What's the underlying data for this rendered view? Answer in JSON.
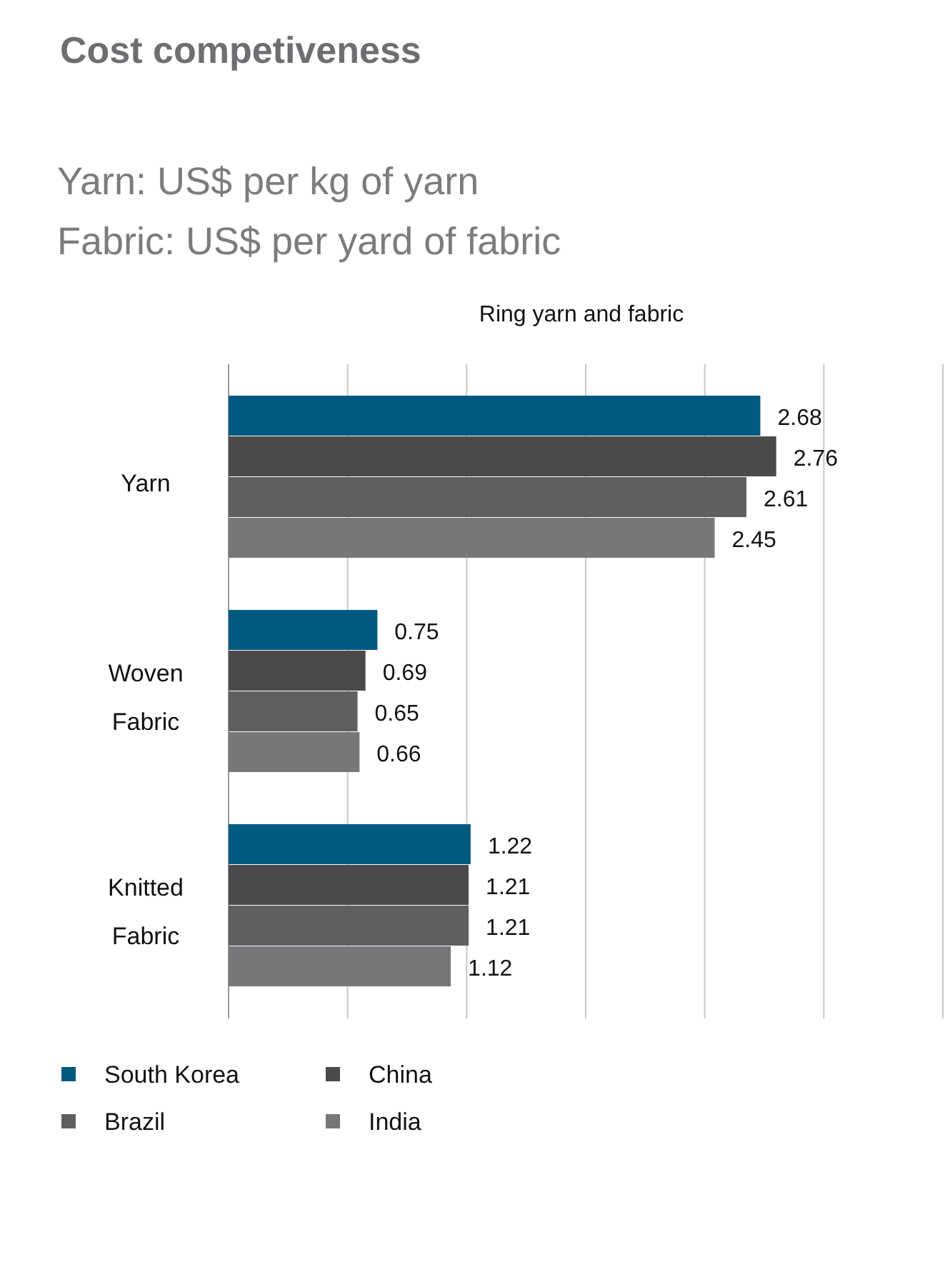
{
  "chart_data": {
    "type": "bar",
    "orientation": "horizontal",
    "title": "Cost competiveness",
    "subtitle": "Yarn: US$ per kg of yarn\nFabric: US$ per yard of fabric",
    "annotations": [
      "Ring yarn and fabric"
    ],
    "categories": [
      "Yarn",
      "Woven Fabric",
      "Knitted Fabric"
    ],
    "series": [
      {
        "name": "South Korea",
        "color": "#005a80",
        "values": [
          2.68,
          0.75,
          1.22
        ]
      },
      {
        "name": "China",
        "color": "#4a4a4d",
        "values": [
          2.76,
          0.69,
          1.21
        ]
      },
      {
        "name": "Brazil",
        "color": "#5f5f62",
        "values": [
          2.61,
          0.65,
          1.21
        ]
      },
      {
        "name": "India",
        "color": "#77777a",
        "values": [
          2.45,
          0.66,
          1.12
        ]
      }
    ],
    "xlim": [
      0,
      3.6
    ],
    "xticks": [
      {
        "value": 0,
        "label": null
      },
      {
        "value": 0.6,
        "label": null
      },
      {
        "value": 1.2,
        "label": null
      },
      {
        "value": 1.8,
        "label": null
      },
      {
        "value": 2.4,
        "label": null
      },
      {
        "value": 3,
        "label": null
      },
      {
        "value": 3.6,
        "label": null
      }
    ],
    "tick_labels": "y",
    "grid": "x",
    "data_labels": true,
    "legend": "bottom left"
  }
}
